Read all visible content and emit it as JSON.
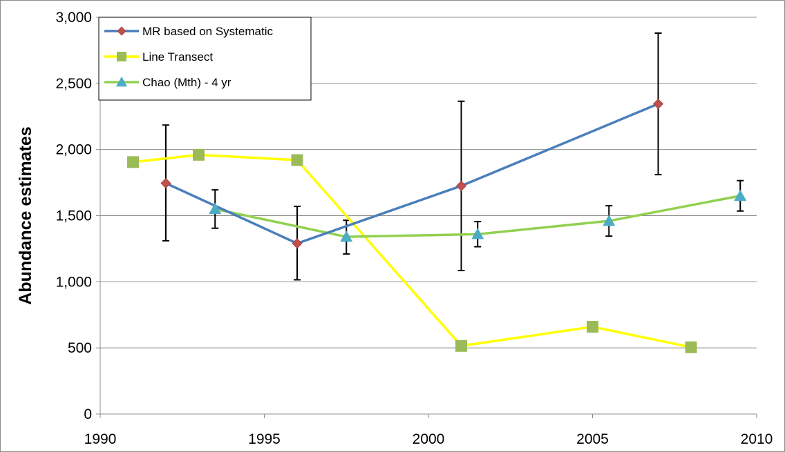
{
  "chart_data": {
    "type": "line",
    "title": "",
    "xlabel": "",
    "ylabel": "Abundance estimates",
    "xlim": [
      1990,
      2010
    ],
    "ylim": [
      0,
      3000
    ],
    "xticks": [
      1990,
      1995,
      2000,
      2005,
      2010
    ],
    "yticks": [
      0,
      500,
      1000,
      1500,
      2000,
      2500,
      3000
    ],
    "xtick_labels": [
      "1990",
      "1995",
      "2000",
      "2005",
      "2010"
    ],
    "ytick_labels": [
      "0",
      "500",
      "1,000",
      "1,500",
      "2,000",
      "2,500",
      "3,000"
    ],
    "grid": "horizontal",
    "legend_position": "top-left",
    "series": [
      {
        "name": "MR based on Systematic",
        "color": "#4a7ebb",
        "marker": "diamond",
        "marker_color": "#c0504d",
        "x": [
          1992,
          1996,
          2001,
          2007
        ],
        "y": [
          1745,
          1290,
          1725,
          2345
        ],
        "error_low": [
          1310,
          1015,
          1085,
          1810
        ],
        "error_high": [
          2185,
          1570,
          2365,
          2880
        ]
      },
      {
        "name": "Line Transect",
        "color": "#ffff00",
        "marker": "square",
        "marker_color": "#9bbb59",
        "x": [
          1991,
          1993,
          1996,
          2001,
          2005,
          2008
        ],
        "y": [
          1905,
          1960,
          1920,
          515,
          660,
          505
        ]
      },
      {
        "name": "Chao (Mth) - 4 yr",
        "color": "#92d050",
        "marker": "triangle",
        "marker_color": "#4bacc6",
        "x": [
          1993.5,
          1997.5,
          2001.5,
          2005.5,
          2009.5
        ],
        "y": [
          1550,
          1340,
          1360,
          1460,
          1650
        ],
        "error_low": [
          1405,
          1210,
          1265,
          1345,
          1535
        ],
        "error_high": [
          1695,
          1465,
          1455,
          1575,
          1765
        ]
      }
    ]
  }
}
